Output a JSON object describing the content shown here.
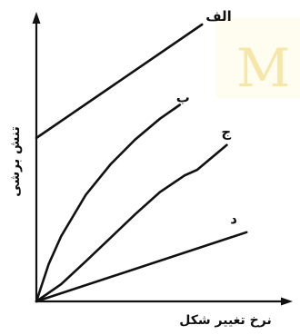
{
  "watermark": {
    "text": "M",
    "color": "#f6e6a8",
    "background": "#fffdf0"
  },
  "chart_data": {
    "type": "line",
    "title": "",
    "xlabel": "نرخ تغییر شکل",
    "ylabel": "تنش برشی",
    "ylim": [
      0,
      10
    ],
    "xlim": [
      0,
      10
    ],
    "grid": false,
    "legend": "none",
    "series": [
      {
        "name": "الف",
        "x": [
          0,
          6.7
        ],
        "y": [
          5.9,
          10.0
        ]
      },
      {
        "name": "ب",
        "x": [
          0,
          0.5,
          1,
          2,
          3,
          4,
          5,
          5.8
        ],
        "y": [
          0,
          1.35,
          2.35,
          3.85,
          4.95,
          5.85,
          6.6,
          7.1
        ]
      },
      {
        "name": "ج",
        "x": [
          0,
          1,
          2,
          3,
          4,
          5,
          6,
          6.5,
          7.7
        ],
        "y": [
          0,
          0.62,
          1.45,
          2.3,
          3.15,
          3.95,
          4.55,
          4.75,
          5.65
        ]
      },
      {
        "name": "د",
        "x": [
          0,
          8.5
        ],
        "y": [
          0,
          2.5
        ]
      }
    ]
  }
}
